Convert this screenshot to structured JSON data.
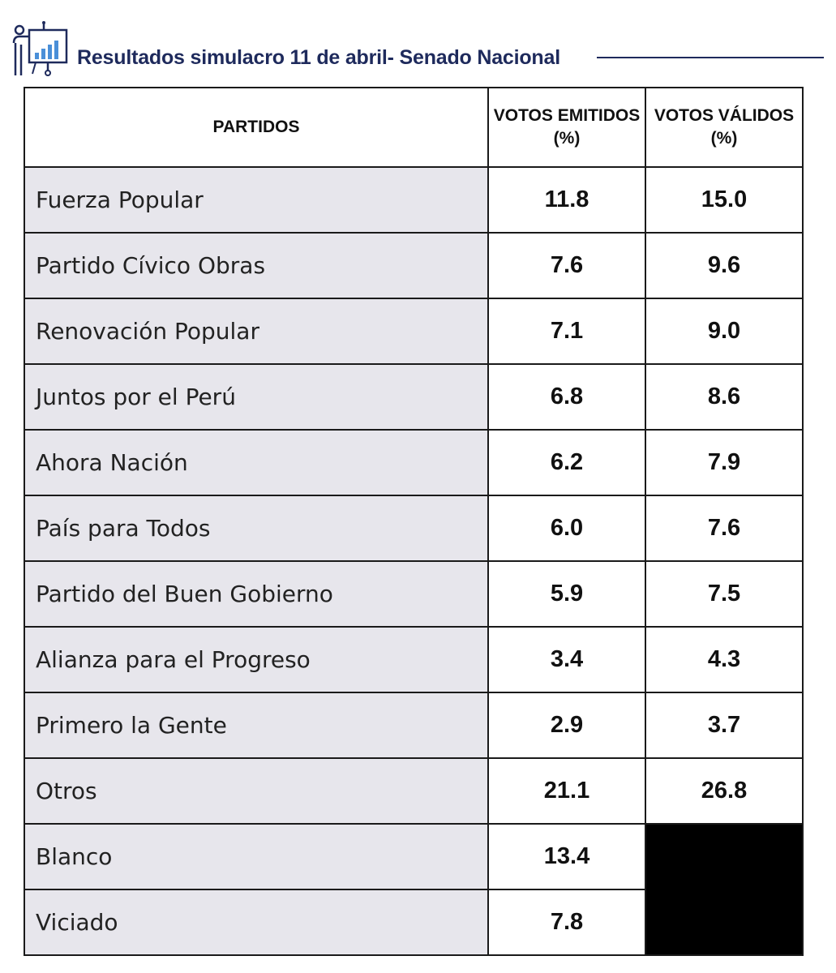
{
  "header": {
    "title": "Resultados simulacro 11 de abril- Senado Nacional",
    "icon": "presentation-chart-icon",
    "accent_color": "#1e2a5c"
  },
  "table": {
    "columns": {
      "party": "PARTIDOS",
      "emitidos_line1": "VOTOS EMITIDOS",
      "emitidos_line2": "(%)",
      "validos_line1": "VOTOS VÁLIDOS",
      "validos_line2": "(%)"
    },
    "rows": [
      {
        "party": "Fuerza Popular",
        "emitidos": "11.8",
        "validos": "15.0"
      },
      {
        "party": "Partido Cívico Obras",
        "emitidos": "7.6",
        "validos": "9.6"
      },
      {
        "party": "Renovación Popular",
        "emitidos": "7.1",
        "validos": "9.0"
      },
      {
        "party": "Juntos por el Perú",
        "emitidos": "6.8",
        "validos": "8.6"
      },
      {
        "party": "Ahora Nación",
        "emitidos": "6.2",
        "validos": "7.9"
      },
      {
        "party": "País para Todos",
        "emitidos": "6.0",
        "validos": "7.6"
      },
      {
        "party": "Partido del Buen Gobierno",
        "emitidos": "5.9",
        "validos": "7.5"
      },
      {
        "party": "Alianza para el Progreso",
        "emitidos": "3.4",
        "validos": "4.3"
      },
      {
        "party": "Primero la Gente",
        "emitidos": "2.9",
        "validos": "3.7"
      },
      {
        "party": "Otros",
        "emitidos": "21.1",
        "validos": "26.8"
      },
      {
        "party": "Blanco",
        "emitidos": "13.4",
        "validos": ""
      },
      {
        "party": "Viciado",
        "emitidos": "7.8",
        "validos": ""
      }
    ],
    "party_cell_color": "#e7e6ec",
    "blank_cell_color": "#000000"
  }
}
